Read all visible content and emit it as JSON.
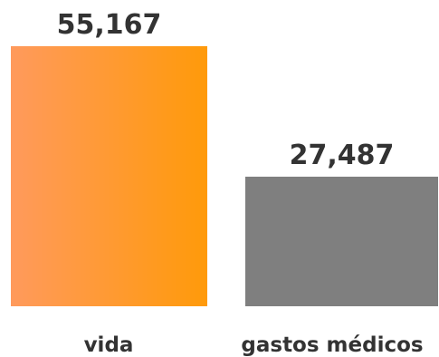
{
  "chart_data": {
    "type": "bar",
    "categories": [
      "vida",
      "gastos médicos"
    ],
    "values": [
      55167,
      27487
    ],
    "value_labels": [
      "55,167",
      "27,487"
    ],
    "ylim": [
      0,
      55167
    ],
    "grid": false,
    "legend": "none",
    "colors": {
      "vida_start": "#ff9a5c",
      "vida_end": "#ff9a0a",
      "gastos_medicos": "#7f7f7f",
      "text": "#333333"
    }
  }
}
